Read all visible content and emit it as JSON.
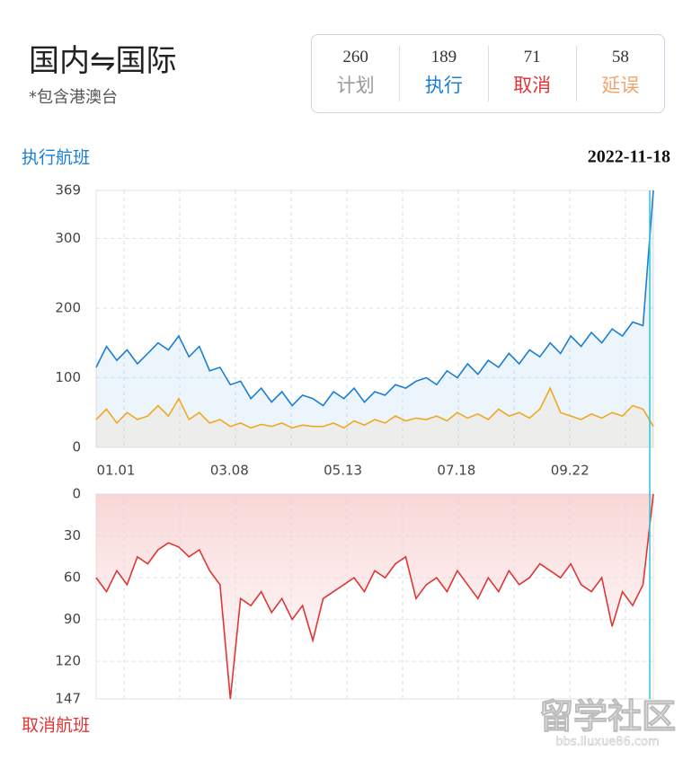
{
  "header": {
    "title": "国内⇋国际",
    "subtitle": "*包含港澳台",
    "stats": [
      {
        "value": 260,
        "label": "计划",
        "color": "#9a9a9a"
      },
      {
        "value": 189,
        "label": "执行",
        "color": "#1a7fd4"
      },
      {
        "value": 71,
        "label": "取消",
        "color": "#e03535"
      },
      {
        "value": 58,
        "label": "延误",
        "color": "#f2a46a"
      }
    ]
  },
  "watermark": {
    "main": "留学社区",
    "url": "bbs.liuxue86.com"
  },
  "chart_data": [
    {
      "type": "line",
      "title": "执行航班",
      "date": "2022-11-18",
      "categories": [
        "01.01",
        null,
        null,
        null,
        null,
        null,
        null,
        null,
        null,
        null,
        null,
        "03.08",
        null,
        null,
        null,
        null,
        null,
        null,
        null,
        null,
        null,
        null,
        "05.13",
        null,
        null,
        null,
        null,
        null,
        null,
        null,
        null,
        null,
        null,
        "07.18",
        null,
        null,
        null,
        null,
        null,
        null,
        null,
        null,
        null,
        null,
        "09.22",
        null,
        null,
        null,
        null,
        null,
        null,
        null,
        null,
        null,
        null
      ],
      "ylim": [
        0,
        369
      ],
      "yticks": [
        0,
        100,
        200,
        300,
        369
      ],
      "grid": true,
      "title_color": "#1a7fd4",
      "series": [
        {
          "color": "#1a7fd4",
          "values": [
            115,
            145,
            125,
            140,
            120,
            135,
            150,
            140,
            160,
            130,
            145,
            110,
            115,
            90,
            95,
            70,
            85,
            65,
            80,
            60,
            75,
            70,
            60,
            80,
            70,
            85,
            65,
            80,
            75,
            90,
            85,
            95,
            100,
            90,
            110,
            100,
            120,
            105,
            125,
            115,
            135,
            120,
            140,
            130,
            150,
            135,
            160,
            145,
            165,
            150,
            170,
            160,
            180,
            175,
            369
          ]
        },
        {
          "color": "#f0a820",
          "values": [
            40,
            55,
            35,
            50,
            40,
            45,
            60,
            45,
            70,
            40,
            50,
            35,
            40,
            30,
            35,
            28,
            33,
            30,
            35,
            28,
            32,
            30,
            30,
            35,
            28,
            38,
            32,
            40,
            35,
            45,
            38,
            42,
            40,
            45,
            38,
            50,
            42,
            48,
            40,
            55,
            45,
            50,
            42,
            55,
            85,
            50,
            45,
            40,
            48,
            42,
            50,
            45,
            60,
            55,
            30
          ]
        }
      ]
    },
    {
      "type": "line",
      "title": "取消航班",
      "ylim": [
        147,
        0
      ],
      "yticks": [
        0,
        30,
        60,
        90,
        120,
        147
      ],
      "grid": true,
      "title_color": "#e03535",
      "series": [
        {
          "color": "#e03535",
          "values": [
            60,
            70,
            55,
            65,
            45,
            50,
            40,
            35,
            38,
            45,
            40,
            55,
            65,
            147,
            75,
            80,
            70,
            85,
            75,
            90,
            80,
            105,
            75,
            70,
            65,
            60,
            70,
            55,
            60,
            50,
            45,
            75,
            65,
            60,
            70,
            55,
            65,
            75,
            60,
            70,
            55,
            65,
            60,
            50,
            55,
            60,
            50,
            65,
            70,
            60,
            95,
            70,
            80,
            65,
            0
          ]
        }
      ]
    }
  ]
}
